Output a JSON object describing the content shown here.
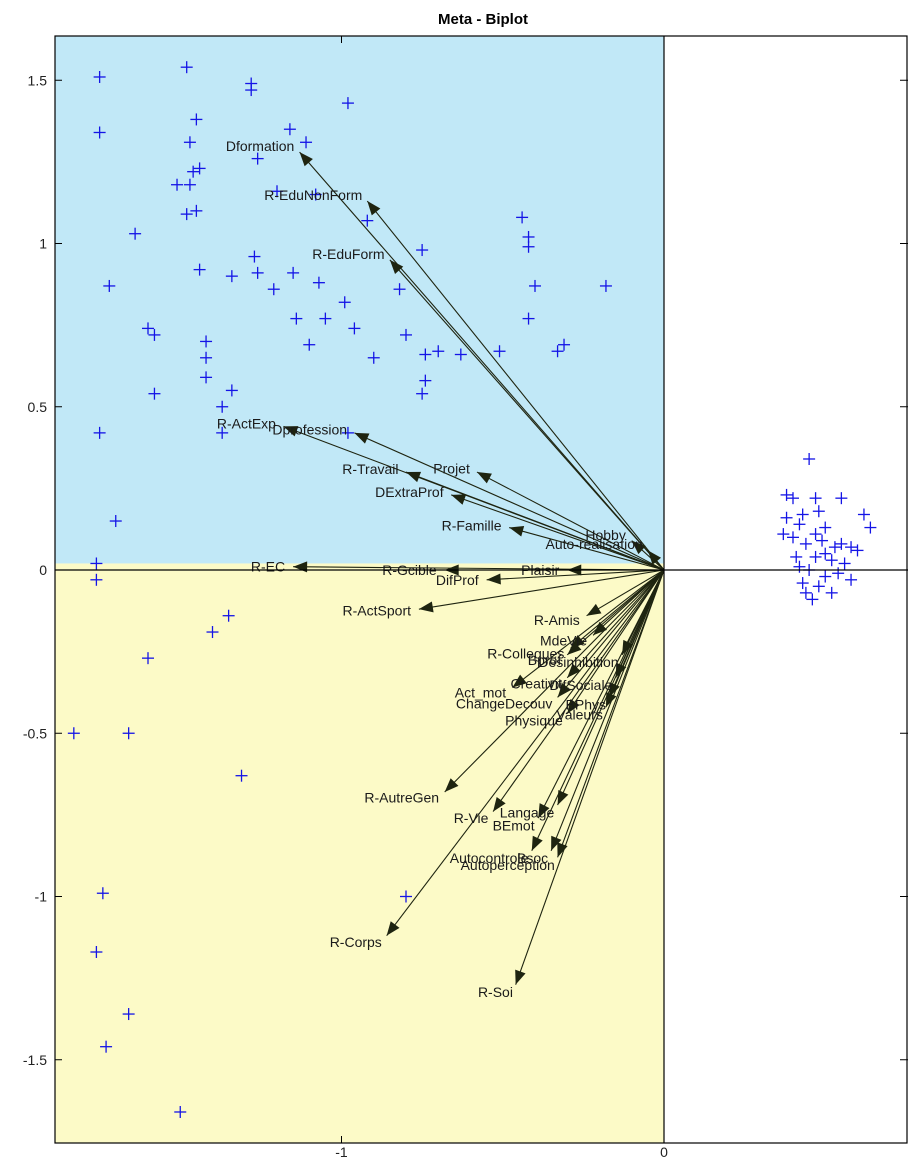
{
  "chart_data": {
    "type": "scatter",
    "title": "Meta - Biplot",
    "xlabel": "",
    "ylabel": "",
    "xlim": [
      -1.88,
      0.75
    ],
    "ylim": [
      -1.7,
      1.63
    ],
    "x_ticks": [
      "-1",
      "0"
    ],
    "x_tick_values": [
      -1,
      0
    ],
    "y_ticks": [
      "-1.5",
      "-1",
      "-0.5",
      "0",
      "0.5",
      "1",
      "1.5"
    ],
    "y_tick_values": [
      -1.5,
      -1,
      -0.5,
      0,
      0.5,
      1,
      1.5
    ],
    "grid": false,
    "legend": "none",
    "quadrant_colors": {
      "upper_left": "#c1e8f7",
      "lower_left": "#fcfac7"
    },
    "quadrant_split_y": 0.02,
    "quadrant_split_x": 0,
    "colors": {
      "points": "#1414e6",
      "vectors": "#1e2410",
      "axes": "#000000"
    },
    "vectors": [
      {
        "name": "Dformation",
        "x": -1.13,
        "y": 1.28
      },
      {
        "name": "R-EduNonForm",
        "x": -0.92,
        "y": 1.13
      },
      {
        "name": "R-EduForm",
        "x": -0.85,
        "y": 0.95
      },
      {
        "name": "R-ActExp",
        "x": -1.18,
        "y": 0.44
      },
      {
        "name": "Dprofession",
        "x": -0.96,
        "y": 0.42
      },
      {
        "name": "Projet",
        "x": -0.58,
        "y": 0.3
      },
      {
        "name": "R-Travail",
        "x": -0.8,
        "y": 0.3
      },
      {
        "name": "DExtraProf",
        "x": -0.66,
        "y": 0.23
      },
      {
        "name": "R-Famille",
        "x": -0.48,
        "y": 0.13
      },
      {
        "name": "Hobby",
        "x": -0.1,
        "y": 0.09
      },
      {
        "name": "Auto-realisation",
        "x": -0.05,
        "y": 0.06
      },
      {
        "name": "R-EC",
        "x": -1.15,
        "y": 0.01
      },
      {
        "name": "R-Gcible",
        "x": -0.68,
        "y": 0.0
      },
      {
        "name": "Plaisir",
        "x": -0.3,
        "y": 0.0
      },
      {
        "name": "DifProf",
        "x": -0.55,
        "y": -0.03
      },
      {
        "name": "R-ActSport",
        "x": -0.76,
        "y": -0.12
      },
      {
        "name": "R-Amis",
        "x": -0.24,
        "y": -0.14
      },
      {
        "name": "MdeVie",
        "x": -0.22,
        "y": -0.2
      },
      {
        "name": "R-Collegues",
        "x": -0.29,
        "y": -0.24
      },
      {
        "name": "Bprof",
        "x": -0.3,
        "y": -0.26
      },
      {
        "name": "Creativit",
        "x": -0.3,
        "y": -0.33
      },
      {
        "name": "Desinhibition",
        "x": -0.13,
        "y": -0.26
      },
      {
        "name": "Act_mot",
        "x": -0.47,
        "y": -0.36
      },
      {
        "name": "DifSociale",
        "x": -0.15,
        "y": -0.33
      },
      {
        "name": "ChangeDecouv",
        "x": -0.33,
        "y": -0.39
      },
      {
        "name": "BPhys",
        "x": -0.17,
        "y": -0.39
      },
      {
        "name": "Valeurs",
        "x": -0.18,
        "y": -0.42
      },
      {
        "name": "Physique",
        "x": -0.3,
        "y": -0.44
      },
      {
        "name": "R-AutreGen",
        "x": -0.68,
        "y": -0.68
      },
      {
        "name": "R-Vie",
        "x": -0.53,
        "y": -0.74
      },
      {
        "name": "BEmot",
        "x": -0.39,
        "y": -0.76
      },
      {
        "name": "Langage",
        "x": -0.33,
        "y": -0.72
      },
      {
        "name": "Autocontrole",
        "x": -0.41,
        "y": -0.86
      },
      {
        "name": "Autoperception",
        "x": -0.33,
        "y": -0.88
      },
      {
        "name": "Bsoc",
        "x": -0.35,
        "y": -0.86
      },
      {
        "name": "R-Corps",
        "x": -0.86,
        "y": -1.12
      },
      {
        "name": "R-Soi",
        "x": -0.46,
        "y": -1.27
      }
    ],
    "points": [
      [
        -1.75,
        1.51
      ],
      [
        -1.75,
        1.34
      ],
      [
        -1.48,
        1.54
      ],
      [
        -1.28,
        1.49
      ],
      [
        -1.28,
        1.47
      ],
      [
        -0.98,
        1.43
      ],
      [
        -1.16,
        1.35
      ],
      [
        -1.47,
        1.31
      ],
      [
        -1.11,
        1.31
      ],
      [
        -1.46,
        1.22
      ],
      [
        -1.44,
        1.23
      ],
      [
        -1.26,
        1.26
      ],
      [
        -1.45,
        1.38
      ],
      [
        -1.51,
        1.18
      ],
      [
        -1.47,
        1.18
      ],
      [
        -1.2,
        1.16
      ],
      [
        -1.08,
        1.15
      ],
      [
        -1.48,
        1.09
      ],
      [
        -1.45,
        1.1
      ],
      [
        -0.92,
        1.07
      ],
      [
        -1.64,
        1.03
      ],
      [
        -1.27,
        0.96
      ],
      [
        -0.75,
        0.98
      ],
      [
        -1.72,
        0.87
      ],
      [
        -1.44,
        0.92
      ],
      [
        -1.34,
        0.9
      ],
      [
        -1.26,
        0.91
      ],
      [
        -1.15,
        0.91
      ],
      [
        -1.07,
        0.88
      ],
      [
        -1.21,
        0.86
      ],
      [
        -0.99,
        0.82
      ],
      [
        -1.14,
        0.77
      ],
      [
        -1.05,
        0.77
      ],
      [
        -0.96,
        0.74
      ],
      [
        -0.82,
        0.86
      ],
      [
        -1.6,
        0.74
      ],
      [
        -1.58,
        0.72
      ],
      [
        -1.42,
        0.7
      ],
      [
        -1.42,
        0.65
      ],
      [
        -1.42,
        0.59
      ],
      [
        -1.1,
        0.69
      ],
      [
        -0.9,
        0.65
      ],
      [
        -0.8,
        0.72
      ],
      [
        -0.74,
        0.66
      ],
      [
        -0.7,
        0.67
      ],
      [
        -0.63,
        0.66
      ],
      [
        -0.51,
        0.67
      ],
      [
        -0.74,
        0.58
      ],
      [
        -0.75,
        0.54
      ],
      [
        -1.58,
        0.54
      ],
      [
        -1.34,
        0.55
      ],
      [
        -1.37,
        0.5
      ],
      [
        -1.37,
        0.42
      ],
      [
        -1.75,
        0.42
      ],
      [
        -0.98,
        0.42
      ],
      [
        -0.44,
        1.08
      ],
      [
        -0.42,
        1.02
      ],
      [
        -0.42,
        0.99
      ],
      [
        -0.4,
        0.87
      ],
      [
        -0.42,
        0.77
      ],
      [
        -0.33,
        0.67
      ],
      [
        -0.31,
        0.69
      ],
      [
        -0.18,
        0.87
      ],
      [
        -1.7,
        0.15
      ],
      [
        -1.76,
        0.02
      ],
      [
        -1.76,
        -0.03
      ],
      [
        -1.35,
        -0.14
      ],
      [
        -1.4,
        -0.19
      ],
      [
        -1.6,
        -0.27
      ],
      [
        -1.83,
        -0.5
      ],
      [
        -1.66,
        -0.5
      ],
      [
        -1.31,
        -0.63
      ],
      [
        -1.74,
        -0.99
      ],
      [
        -1.76,
        -1.17
      ],
      [
        -1.66,
        -1.36
      ],
      [
        -1.73,
        -1.46
      ],
      [
        -1.5,
        -1.66
      ],
      [
        -0.8,
        -1.0
      ],
      [
        0.45,
        0.34
      ],
      [
        0.4,
        0.22
      ],
      [
        0.38,
        0.23
      ],
      [
        0.47,
        0.22
      ],
      [
        0.55,
        0.22
      ],
      [
        0.62,
        0.17
      ],
      [
        0.64,
        0.13
      ],
      [
        0.38,
        0.16
      ],
      [
        0.43,
        0.17
      ],
      [
        0.48,
        0.18
      ],
      [
        0.42,
        0.14
      ],
      [
        0.5,
        0.13
      ],
      [
        0.4,
        0.1
      ],
      [
        0.44,
        0.08
      ],
      [
        0.49,
        0.09
      ],
      [
        0.53,
        0.07
      ],
      [
        0.58,
        0.07
      ],
      [
        0.37,
        0.11
      ],
      [
        0.41,
        0.04
      ],
      [
        0.47,
        0.04
      ],
      [
        0.52,
        0.03
      ],
      [
        0.56,
        0.02
      ],
      [
        0.6,
        0.06
      ],
      [
        0.45,
        0.0
      ],
      [
        0.5,
        -0.02
      ],
      [
        0.54,
        -0.01
      ],
      [
        0.58,
        -0.03
      ],
      [
        0.43,
        -0.04
      ],
      [
        0.48,
        -0.05
      ],
      [
        0.52,
        -0.07
      ],
      [
        0.44,
        -0.07
      ],
      [
        0.46,
        -0.09
      ],
      [
        0.5,
        0.05
      ],
      [
        0.47,
        0.11
      ],
      [
        0.42,
        0.01
      ],
      [
        0.55,
        0.08
      ]
    ]
  }
}
